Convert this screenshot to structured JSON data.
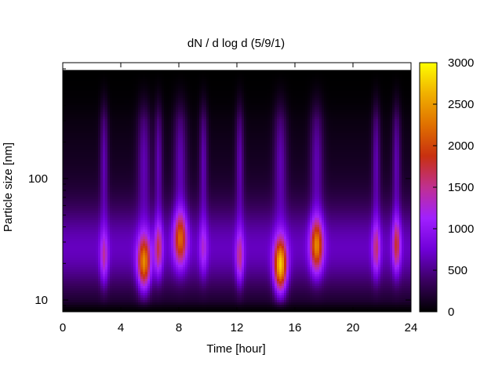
{
  "chart_data": {
    "type": "heatmap",
    "title": "dN / d log d (5/9/1)",
    "xlabel": "Time [hour]",
    "ylabel": "Particle size [nm]",
    "xlim": [
      0,
      24
    ],
    "ylim": [
      8,
      900
    ],
    "y_scale": "log",
    "x_ticks": [
      0,
      4,
      8,
      12,
      16,
      20,
      24
    ],
    "y_ticks": [
      10,
      100
    ],
    "colorbar": {
      "range": [
        0,
        3000
      ],
      "ticks": [
        0,
        500,
        1000,
        1500,
        2000,
        2500,
        3000
      ],
      "colormap": [
        "#000000",
        "#3a0060",
        "#7000d8",
        "#a020ff",
        "#c03090",
        "#c83010",
        "#e07000",
        "#f0b000",
        "#ffff00"
      ]
    },
    "events": [
      {
        "time": 2.85,
        "peak_size_nm": 22,
        "peak_value": 1400
      },
      {
        "time": 5.6,
        "peak_size_nm": 20,
        "peak_value": 2400
      },
      {
        "time": 6.6,
        "peak_size_nm": 26,
        "peak_value": 1600
      },
      {
        "time": 8.1,
        "peak_size_nm": 32,
        "peak_value": 2100
      },
      {
        "time": 9.7,
        "peak_size_nm": 26,
        "peak_value": 1200
      },
      {
        "time": 12.2,
        "peak_size_nm": 22,
        "peak_value": 1500
      },
      {
        "time": 15.0,
        "peak_size_nm": 19,
        "peak_value": 2800
      },
      {
        "time": 17.5,
        "peak_size_nm": 28,
        "peak_value": 2300
      },
      {
        "time": 21.6,
        "peak_size_nm": 26,
        "peak_value": 1500
      },
      {
        "time": 23.0,
        "peak_size_nm": 28,
        "peak_value": 1700
      }
    ]
  }
}
